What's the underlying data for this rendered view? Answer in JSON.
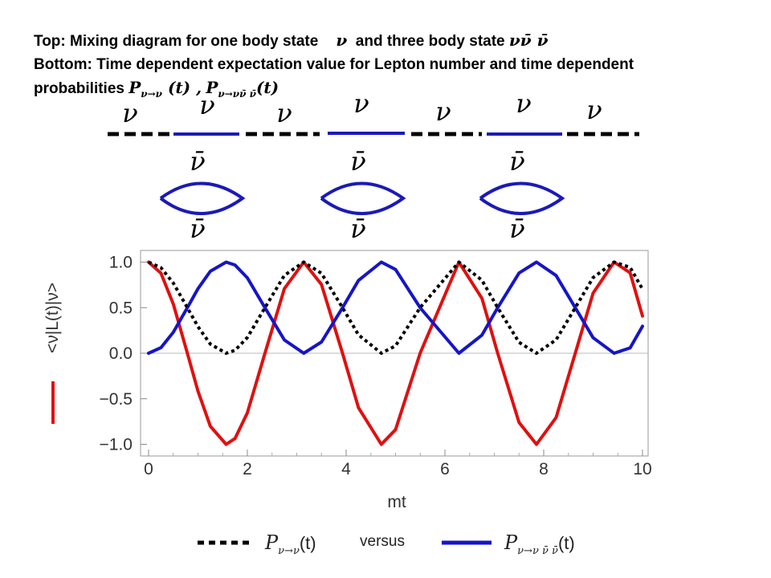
{
  "caption": {
    "line1_prefix": "Top:  Mixing diagram for one body state",
    "line1_nu": "ν",
    "line1_mid": "and three body state",
    "line1_three_body": "νν̄ ν̄",
    "line2": "Bottom:  Time dependent expectation value for Lepton number and time dependent",
    "line3_prefix": "probabilities",
    "p1_symbol": "P",
    "p1_sub": "ν→ν",
    "p1_arg": " (t) ,",
    "p2_symbol": "P",
    "p2_sub": "ν→νν̄ ν̄",
    "p2_arg": "(t)"
  },
  "diagram": {
    "nu": "ν",
    "nubar": "ν̄",
    "colors": {
      "one_body": "#000000",
      "three_body": "#1a1ab8"
    }
  },
  "chart_data": {
    "type": "line",
    "xlabel": "mt",
    "ylabel": "<ν|L(t)|ν>",
    "xlim": [
      0,
      10
    ],
    "ylim": [
      -1.05,
      1.05
    ],
    "x_ticks": [
      "0",
      "2",
      "4",
      "6",
      "8",
      "10"
    ],
    "y_ticks": [
      "1.0",
      "0.5",
      "0.0",
      "−0.5",
      "−1.0"
    ],
    "grid": false,
    "legend_position": "bottom",
    "x": [
      0,
      0.25,
      0.5,
      0.785,
      1.0,
      1.25,
      1.571,
      1.75,
      2.0,
      2.356,
      2.75,
      3.142,
      3.5,
      3.927,
      4.25,
      4.712,
      5.0,
      5.5,
      6.283,
      6.75,
      7.069,
      7.5,
      7.854,
      8.25,
      8.639,
      9.0,
      9.425,
      9.75,
      10.0
    ],
    "series": [
      {
        "label": "<ν|L(t)|ν>",
        "color": "#e01010",
        "line_style": "solid",
        "values": [
          1.0,
          0.878,
          0.54,
          0.0,
          -0.416,
          -0.801,
          -1.0,
          -0.936,
          -0.654,
          0.0,
          0.709,
          1.0,
          0.754,
          0.0,
          -0.598,
          -1.0,
          -0.839,
          0.004,
          1.0,
          0.602,
          0.0,
          -0.76,
          -1.0,
          -0.707,
          0.0,
          0.66,
          1.0,
          0.883,
          0.408
        ]
      },
      {
        "name": "P_{ν→ν}(t)",
        "color": "#000000",
        "line_style": "dotted",
        "values": [
          1.0,
          0.939,
          0.77,
          0.5,
          0.292,
          0.1,
          0.0,
          0.032,
          0.173,
          0.5,
          0.855,
          1.0,
          0.877,
          0.5,
          0.201,
          0.0,
          0.081,
          0.502,
          1.0,
          0.801,
          0.5,
          0.12,
          0.0,
          0.147,
          0.5,
          0.83,
          1.0,
          0.942,
          0.704
        ]
      },
      {
        "name": "P_{ν→νν̄ν̄}(t)",
        "color": "#1515c8",
        "line_style": "solid",
        "values": [
          0.0,
          0.061,
          0.23,
          0.5,
          0.708,
          0.9,
          1.0,
          0.968,
          0.827,
          0.5,
          0.145,
          0.0,
          0.123,
          0.5,
          0.799,
          1.0,
          0.919,
          0.498,
          0.0,
          0.199,
          0.5,
          0.88,
          1.0,
          0.853,
          0.5,
          0.17,
          0.0,
          0.058,
          0.296
        ]
      }
    ]
  },
  "legend": {
    "p1_symbol": "P",
    "p1_sub": "ν→ν",
    "p1_arg": "(t)",
    "versus": "versus",
    "p2_symbol": "P",
    "p2_sub": "ν→ν ν̄ ν̄",
    "p2_arg": "(t)"
  }
}
